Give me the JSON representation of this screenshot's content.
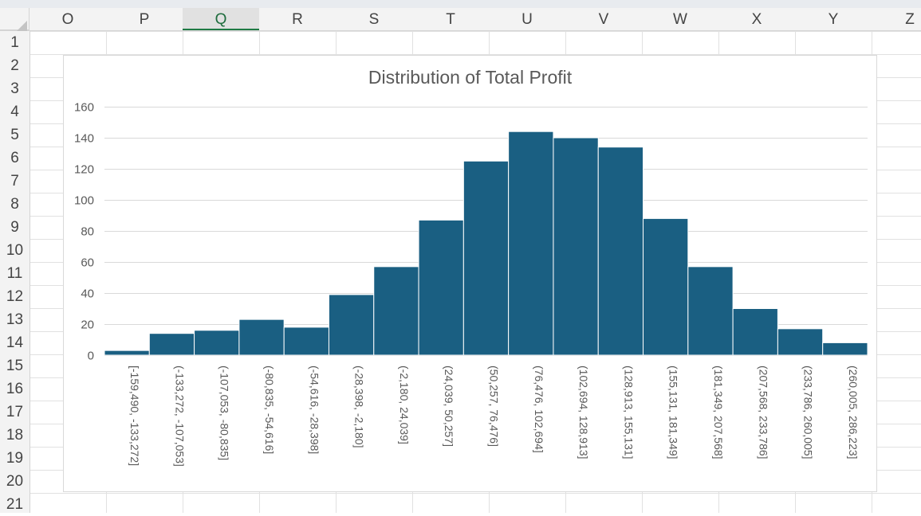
{
  "spreadsheet": {
    "columns": [
      "O",
      "P",
      "Q",
      "R",
      "S",
      "T",
      "U",
      "V",
      "W",
      "X",
      "Y",
      "Z"
    ],
    "selected_column": "Q",
    "rows": [
      "1",
      "2",
      "3",
      "4",
      "5",
      "6",
      "7",
      "8",
      "9",
      "10",
      "11",
      "12",
      "13",
      "14",
      "15",
      "16",
      "17",
      "18",
      "19",
      "20",
      "21"
    ]
  },
  "colors": {
    "bar": "#1a5f82",
    "gridline": "#d9d9d9",
    "header_bg": "#f3f3f3",
    "selected_header_text": "#1f6d3e"
  },
  "chart_data": {
    "type": "bar",
    "title": "Distribution of Total Profit",
    "xlabel": "",
    "ylabel": "",
    "ylim": [
      0,
      160
    ],
    "yticks": [
      "0",
      "20",
      "40",
      "60",
      "80",
      "100",
      "120",
      "140",
      "160"
    ],
    "grid": true,
    "legend": "none",
    "categories": [
      "[-159,490, -133,272]",
      "(-133,272, -107,053]",
      "(-107,053, -80,835]",
      "(-80,835, -54,616]",
      "(-54,616, -28,398]",
      "(-28,398, -2,180]",
      "(-2,180, 24,039]",
      "(24,039, 50,257]",
      "(50,257, 76,476]",
      "(76,476, 102,694]",
      "(102,694, 128,913]",
      "(128,913, 155,131]",
      "(155,131, 181,349]",
      "(181,349, 207,568]",
      "(207,568, 233,786]",
      "(233,786, 260,005]",
      "(260,005, 286,223]"
    ],
    "values": [
      3,
      14,
      16,
      23,
      18,
      39,
      57,
      87,
      125,
      144,
      140,
      134,
      88,
      57,
      30,
      17,
      8
    ]
  }
}
